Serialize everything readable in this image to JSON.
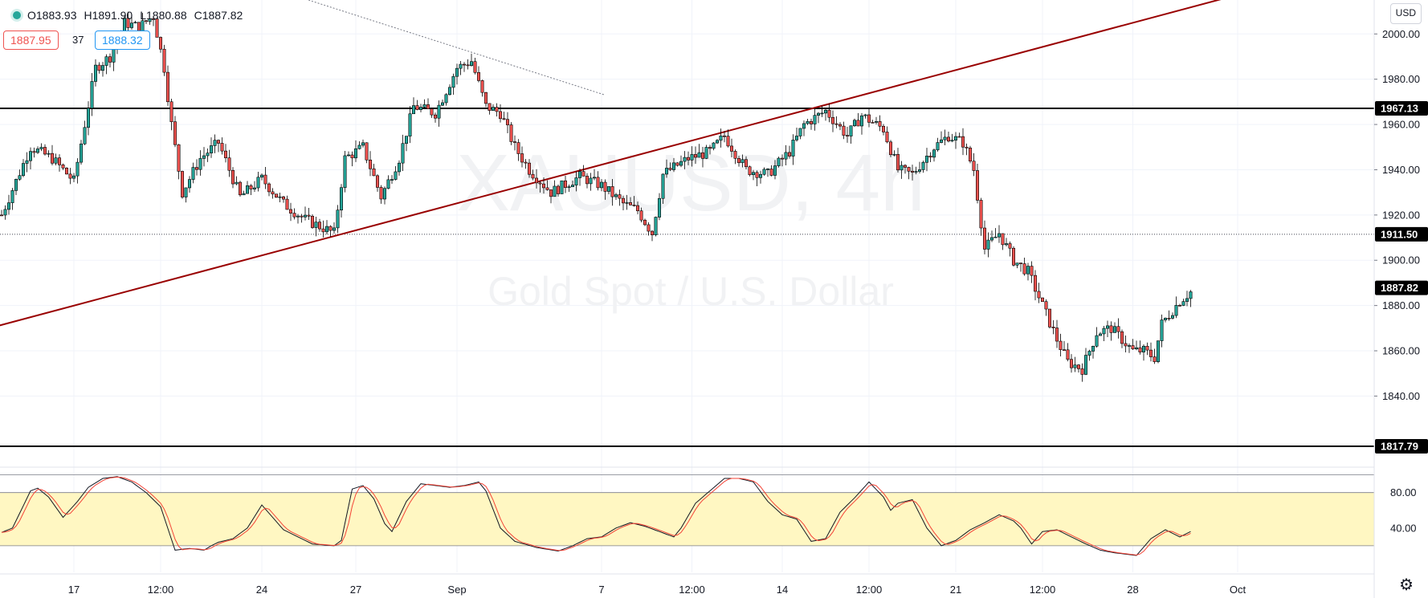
{
  "legend": {
    "open": "O1883.93",
    "high": "H1891.90",
    "low": "L1880.88",
    "close": "C1887.82",
    "bid": "1887.95",
    "spread": "37",
    "ask": "1888.32"
  },
  "watermark": {
    "symbol": "XAUUSD, 4h",
    "description": "Gold Spot / U.S. Dollar"
  },
  "currency_label": "USD",
  "colors": {
    "up": "#26a69a",
    "down": "#ef5350",
    "trendline": "#990000",
    "stoch_k": "#131722",
    "stoch_d": "#f44336",
    "stoch_band": "#fff7c2"
  },
  "settings_icon": "gear-icon",
  "chart_data": [
    {
      "type": "candlestick",
      "ylim": [
        1810,
        2015
      ],
      "price_ticks": [
        "2000.00",
        "1980.00",
        "1960.00",
        "1940.00",
        "1920.00",
        "1900.00",
        "1880.00",
        "1860.00",
        "1840.00"
      ],
      "price_tick_values": [
        2000,
        1980,
        1960,
        1940,
        1920,
        1900,
        1880,
        1860,
        1840
      ],
      "time_ticks": [
        "17",
        "12:00",
        "24",
        "27",
        "Sep",
        "7",
        "12:00",
        "14",
        "12:00",
        "21",
        "12:00",
        "28",
        "Oct"
      ],
      "time_tick_index": [
        20,
        44,
        72,
        98,
        126,
        166,
        191,
        216,
        240,
        264,
        288,
        313,
        342
      ],
      "price_tags": [
        {
          "label": "1967.13",
          "value": 1967.13,
          "style": "black"
        },
        {
          "label": "1911.50",
          "value": 1911.5,
          "style": "black"
        },
        {
          "label": "1887.82",
          "value": 1887.82,
          "style": "black"
        },
        {
          "label": "1817.79",
          "value": 1817.79,
          "style": "black"
        }
      ],
      "horizontal_lines": [
        1967.13,
        1817.79
      ],
      "dotted_line": 1911.5,
      "trendline": {
        "from": [
          -1,
          1871
        ],
        "to": [
          353,
          2022
        ]
      },
      "dashed_trendline": {
        "from": [
          79,
          2018
        ],
        "to": [
          167,
          1973
        ]
      },
      "anchors": [
        [
          0,
          1920
        ],
        [
          4,
          1935
        ],
        [
          8,
          1950
        ],
        [
          14,
          1945
        ],
        [
          20,
          1935
        ],
        [
          26,
          1985
        ],
        [
          30,
          1990
        ],
        [
          34,
          2005
        ],
        [
          38,
          2003
        ],
        [
          42,
          2008
        ],
        [
          45,
          1985
        ],
        [
          47,
          1960
        ],
        [
          50,
          1930
        ],
        [
          55,
          1945
        ],
        [
          60,
          1952
        ],
        [
          66,
          1928
        ],
        [
          72,
          1936
        ],
        [
          78,
          1925
        ],
        [
          84,
          1918
        ],
        [
          92,
          1912
        ],
        [
          95,
          1945
        ],
        [
          100,
          1950
        ],
        [
          105,
          1928
        ],
        [
          110,
          1945
        ],
        [
          114,
          1968
        ],
        [
          120,
          1965
        ],
        [
          126,
          1985
        ],
        [
          130,
          1988
        ],
        [
          134,
          1968
        ],
        [
          138,
          1965
        ],
        [
          142,
          1950
        ],
        [
          146,
          1940
        ],
        [
          152,
          1930
        ],
        [
          160,
          1937
        ],
        [
          166,
          1933
        ],
        [
          172,
          1925
        ],
        [
          176,
          1922
        ],
        [
          180,
          1912
        ],
        [
          183,
          1938
        ],
        [
          190,
          1945
        ],
        [
          196,
          1948
        ],
        [
          200,
          1955
        ],
        [
          206,
          1940
        ],
        [
          212,
          1938
        ],
        [
          218,
          1948
        ],
        [
          222,
          1960
        ],
        [
          228,
          1966
        ],
        [
          234,
          1955
        ],
        [
          238,
          1964
        ],
        [
          244,
          1958
        ],
        [
          248,
          1940
        ],
        [
          252,
          1938
        ],
        [
          258,
          1950
        ],
        [
          262,
          1955
        ],
        [
          266,
          1952
        ],
        [
          269,
          1940
        ],
        [
          272,
          1905
        ],
        [
          276,
          1912
        ],
        [
          280,
          1900
        ],
        [
          284,
          1895
        ],
        [
          288,
          1880
        ],
        [
          292,
          1865
        ],
        [
          295,
          1855
        ],
        [
          299,
          1852
        ],
        [
          303,
          1868
        ],
        [
          307,
          1870
        ],
        [
          313,
          1860
        ],
        [
          316,
          1860
        ],
        [
          319,
          1857
        ],
        [
          321,
          1872
        ],
        [
          326,
          1882
        ],
        [
          329,
          1886
        ]
      ]
    },
    {
      "type": "line",
      "name": "",
      "ylim": [
        -10,
        106
      ],
      "y_ticks": [
        "80.00",
        "40.00"
      ],
      "y_tick_values": [
        80,
        40
      ],
      "band": [
        20,
        80
      ],
      "k_anchors": [
        [
          0,
          35
        ],
        [
          3,
          40
        ],
        [
          6,
          65
        ],
        [
          8,
          82
        ],
        [
          10,
          85
        ],
        [
          13,
          75
        ],
        [
          17,
          52
        ],
        [
          21,
          70
        ],
        [
          24,
          86
        ],
        [
          28,
          96
        ],
        [
          32,
          98
        ],
        [
          36,
          92
        ],
        [
          40,
          80
        ],
        [
          44,
          64
        ],
        [
          48,
          15
        ],
        [
          52,
          17
        ],
        [
          56,
          15
        ],
        [
          58,
          20
        ],
        [
          60,
          24
        ],
        [
          64,
          28
        ],
        [
          68,
          40
        ],
        [
          72,
          66
        ],
        [
          75,
          52
        ],
        [
          78,
          38
        ],
        [
          82,
          30
        ],
        [
          86,
          22
        ],
        [
          92,
          20
        ],
        [
          94,
          26
        ],
        [
          97,
          84
        ],
        [
          100,
          88
        ],
        [
          103,
          73
        ],
        [
          106,
          45
        ],
        [
          108,
          36
        ],
        [
          112,
          70
        ],
        [
          116,
          90
        ],
        [
          120,
          88
        ],
        [
          124,
          86
        ],
        [
          128,
          88
        ],
        [
          132,
          92
        ],
        [
          134,
          82
        ],
        [
          138,
          40
        ],
        [
          142,
          25
        ],
        [
          148,
          18
        ],
        [
          154,
          14
        ],
        [
          158,
          20
        ],
        [
          162,
          28
        ],
        [
          166,
          30
        ],
        [
          170,
          40
        ],
        [
          174,
          46
        ],
        [
          178,
          42
        ],
        [
          182,
          36
        ],
        [
          186,
          30
        ],
        [
          188,
          40
        ],
        [
          192,
          68
        ],
        [
          196,
          82
        ],
        [
          200,
          96
        ],
        [
          204,
          96
        ],
        [
          208,
          92
        ],
        [
          212,
          70
        ],
        [
          216,
          55
        ],
        [
          220,
          50
        ],
        [
          224,
          25
        ],
        [
          228,
          28
        ],
        [
          232,
          58
        ],
        [
          236,
          74
        ],
        [
          240,
          92
        ],
        [
          244,
          75
        ],
        [
          246,
          60
        ],
        [
          248,
          68
        ],
        [
          252,
          72
        ],
        [
          256,
          40
        ],
        [
          260,
          20
        ],
        [
          264,
          26
        ],
        [
          268,
          38
        ],
        [
          272,
          46
        ],
        [
          276,
          55
        ],
        [
          280,
          48
        ],
        [
          282,
          40
        ],
        [
          285,
          22
        ],
        [
          288,
          36
        ],
        [
          292,
          38
        ],
        [
          296,
          30
        ],
        [
          300,
          22
        ],
        [
          304,
          15
        ],
        [
          308,
          12
        ],
        [
          312,
          10
        ],
        [
          314,
          9
        ],
        [
          318,
          28
        ],
        [
          322,
          38
        ],
        [
          326,
          30
        ],
        [
          330,
          38
        ],
        [
          334,
          72
        ],
        [
          336,
          88
        ],
        [
          338,
          92
        ],
        [
          342,
          90
        ],
        [
          346,
          88
        ]
      ]
    }
  ]
}
